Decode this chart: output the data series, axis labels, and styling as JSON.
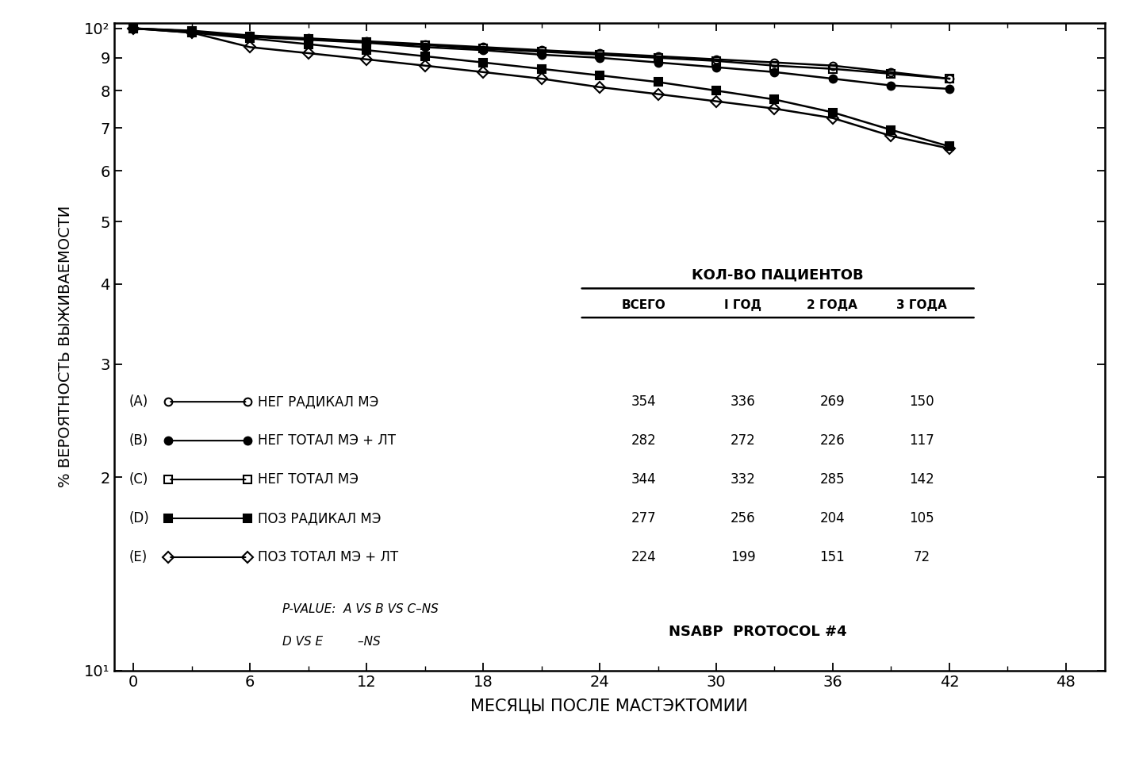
{
  "xlabel": "МЕСЯЦЫ ПОСЛЕ МАСТЭКТОМИИ",
  "ylabel": "% ВЕРОЯТНОСТЬ ВЫЖИВАЕМОСТИ",
  "series": [
    {
      "label": "НЕГ РАДИКАЛ МЭ",
      "letter": "A",
      "x": [
        0,
        3,
        6,
        9,
        12,
        15,
        18,
        21,
        24,
        27,
        30,
        33,
        36,
        39,
        42
      ],
      "y": [
        100,
        99.2,
        97.5,
        96.5,
        95.5,
        94.5,
        93.5,
        92.5,
        91.5,
        90.5,
        89.5,
        88.5,
        87.5,
        85.5,
        83.5
      ],
      "marker": "o",
      "fillstyle": "none",
      "linewidth": 1.8,
      "markersize": 7
    },
    {
      "label": "НЕГ ТОТАЛ МЭ + ЛТ",
      "letter": "B",
      "x": [
        0,
        3,
        6,
        9,
        12,
        15,
        18,
        21,
        24,
        27,
        30,
        33,
        36,
        39,
        42
      ],
      "y": [
        100,
        99.0,
        97.0,
        96.0,
        95.0,
        93.5,
        92.5,
        91.0,
        90.0,
        88.5,
        87.0,
        85.5,
        83.5,
        81.5,
        80.5
      ],
      "marker": "o",
      "fillstyle": "full",
      "linewidth": 1.8,
      "markersize": 7
    },
    {
      "label": "НЕГ ТОТАЛ МЭ",
      "letter": "C",
      "x": [
        0,
        3,
        6,
        9,
        12,
        15,
        18,
        21,
        24,
        27,
        30,
        33,
        36,
        39,
        42
      ],
      "y": [
        100,
        99.0,
        97.2,
        96.2,
        95.2,
        94.2,
        93.0,
        92.0,
        91.0,
        90.0,
        89.0,
        87.5,
        86.5,
        85.0,
        83.5
      ],
      "marker": "s",
      "fillstyle": "none",
      "linewidth": 1.8,
      "markersize": 7
    },
    {
      "label": "ПОЗ РАДИКАЛ МЭ",
      "letter": "D",
      "x": [
        0,
        3,
        6,
        9,
        12,
        15,
        18,
        21,
        24,
        27,
        30,
        33,
        36,
        39,
        42
      ],
      "y": [
        100,
        98.5,
        96.5,
        94.5,
        92.5,
        90.5,
        88.5,
        86.5,
        84.5,
        82.5,
        80.0,
        77.5,
        74.0,
        69.5,
        65.5
      ],
      "marker": "s",
      "fillstyle": "full",
      "linewidth": 1.8,
      "markersize": 7
    },
    {
      "label": "ПОЗ ТОТАЛ МЭ + ЛТ",
      "letter": "E",
      "x": [
        0,
        3,
        6,
        9,
        12,
        15,
        18,
        21,
        24,
        27,
        30,
        33,
        36,
        39,
        42
      ],
      "y": [
        100,
        98.5,
        93.5,
        91.5,
        89.5,
        87.5,
        85.5,
        83.5,
        81.0,
        79.0,
        77.0,
        75.0,
        72.5,
        68.0,
        65.0
      ],
      "marker": "D",
      "fillstyle": "none",
      "linewidth": 1.8,
      "markersize": 7
    }
  ],
  "table_header": "КОЛ-ВО ПАЦИЕНТОВ",
  "table_cols": [
    "ВСЕГО",
    "I ГОД",
    "2 ГОДА",
    "3 ГОДА"
  ],
  "table_data": [
    [
      354,
      336,
      269,
      150
    ],
    [
      282,
      272,
      226,
      117
    ],
    [
      344,
      332,
      285,
      142
    ],
    [
      277,
      256,
      204,
      105
    ],
    [
      224,
      199,
      151,
      72
    ]
  ],
  "pvalue_line1": "P-VALUE:  A VS B VS C–NS",
  "pvalue_line2": "D VS E         –NS",
  "protocol_text": "NSABP  PROTOCOL #4",
  "xlim": [
    -1,
    50
  ],
  "xticks": [
    0,
    6,
    12,
    18,
    24,
    30,
    36,
    42,
    48
  ],
  "background_color": "#ffffff"
}
